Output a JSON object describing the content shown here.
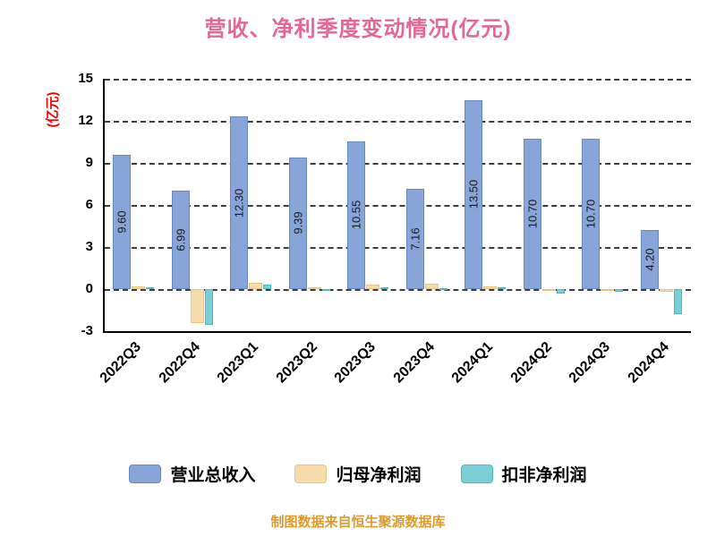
{
  "chart_data": {
    "type": "bar",
    "title": "营收、净利季度变动情况(亿元)",
    "ylabel": "(亿元)",
    "xlabel": "",
    "categories": [
      "2022Q3",
      "2022Q4",
      "2023Q1",
      "2023Q2",
      "2023Q3",
      "2023Q4",
      "2024Q1",
      "2024Q2",
      "2024Q3",
      "2024Q4"
    ],
    "series": [
      {
        "name": "营业总收入",
        "color_key": "revenue",
        "values": [
          9.6,
          6.99,
          12.3,
          9.39,
          10.55,
          7.16,
          13.5,
          10.7,
          10.7,
          4.2
        ],
        "labels": [
          "9.60",
          "6.99",
          "12.30",
          "9.39",
          "10.55",
          "7.16",
          "13.50",
          "10.70",
          "10.70",
          "4.20"
        ]
      },
      {
        "name": "归母净利润",
        "color_key": "net_profit",
        "values": [
          0.2,
          -2.4,
          0.45,
          0.15,
          0.35,
          0.4,
          0.2,
          -0.15,
          -0.1,
          -0.2
        ]
      },
      {
        "name": "扣非净利润",
        "color_key": "deducted",
        "values": [
          0.15,
          -2.55,
          0.3,
          -0.15,
          0.1,
          0.05,
          0.15,
          -0.35,
          -0.2,
          -1.8
        ]
      }
    ],
    "ylim": [
      -3,
      15
    ],
    "yticks": [
      15,
      12,
      9,
      6,
      3,
      0,
      -3
    ],
    "grid": "dashed-horizontal",
    "legend_position": "bottom"
  },
  "source_note": "制图数据来自恒生聚源数据库",
  "colors": {
    "title": "#e4688f",
    "ylabel": "#ff0000",
    "source_note": "#dc9b2f",
    "revenue": "#87a5d8",
    "revenue_border": "#6889c5",
    "net_profit": "#f8dcab",
    "net_profit_border": "#e7c488",
    "deducted": "#7ad0d6",
    "deducted_border": "#52b9c1",
    "grid": "#3d3d3d",
    "axis": "#000000",
    "bar_label": "#1a1a1a"
  }
}
